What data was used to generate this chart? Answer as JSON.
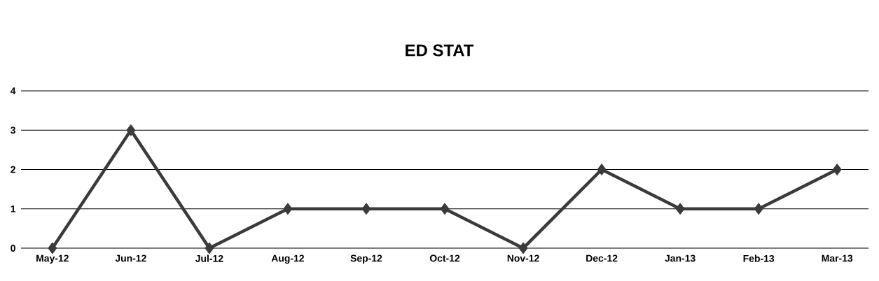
{
  "chart_data": {
    "type": "line",
    "title": "ED STAT",
    "categories": [
      "May-12",
      "Jun-12",
      "Jul-12",
      "Aug-12",
      "Sep-12",
      "Oct-12",
      "Nov-12",
      "Dec-12",
      "Jan-13",
      "Feb-13",
      "Mar-13"
    ],
    "values": [
      0,
      3,
      0,
      1,
      1,
      1,
      0,
      2,
      1,
      1,
      2
    ],
    "color": "#3a3a3a",
    "ylim": [
      0,
      4
    ],
    "yticks": [
      0,
      1,
      2,
      3,
      4
    ],
    "grid": "y",
    "marker": "diamond",
    "line_style": "solid"
  }
}
